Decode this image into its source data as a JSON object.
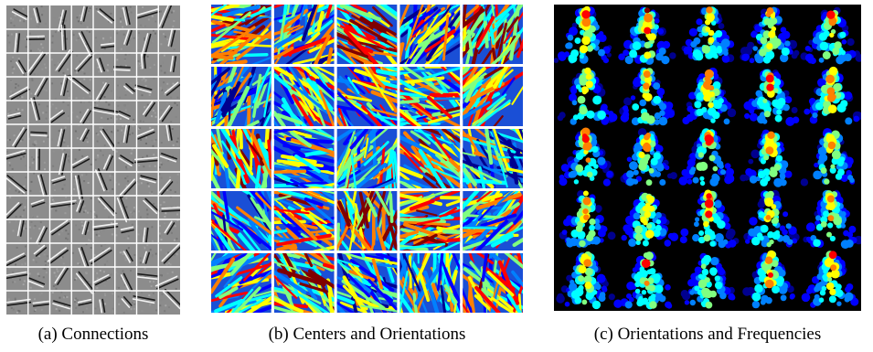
{
  "figure": {
    "panels": [
      {
        "id": "a",
        "caption": "(a) Connections",
        "kind": "filters",
        "rows": 13,
        "cols": 8
      },
      {
        "id": "b",
        "caption": "(b) Centers and Orientations",
        "kind": "stroke-tiles",
        "rows": 5,
        "cols": 5
      },
      {
        "id": "c",
        "caption": "(c) Orientations and Frequencies",
        "kind": "scatter-tiles",
        "rows": 5,
        "cols": 5
      }
    ],
    "colors": {
      "filter_background": "#8c8c8c",
      "grid_line": "#ffffff",
      "scatter_background": "#000000",
      "colormap": [
        "#00008f",
        "#0000ff",
        "#0080ff",
        "#00ffff",
        "#80ff80",
        "#ffff00",
        "#ff8000",
        "#ff0000",
        "#800000"
      ]
    }
  }
}
